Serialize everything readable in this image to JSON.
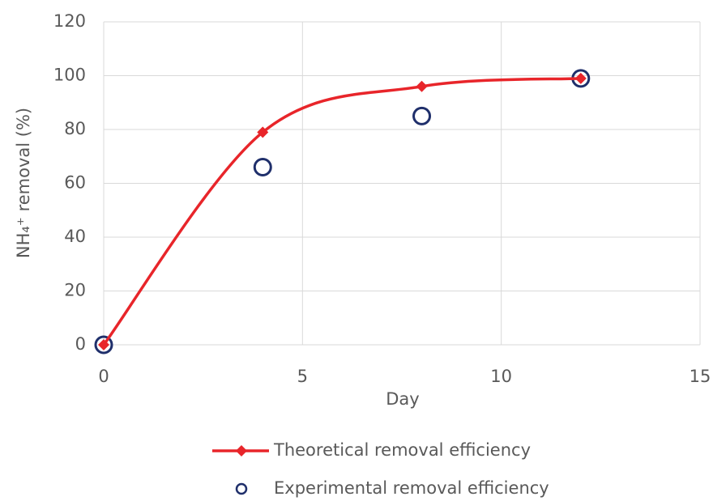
{
  "chart_data": {
    "type": "line",
    "x_label": "Day",
    "y_label": "NH₄⁺ removal (%)",
    "x": [
      0,
      4,
      8,
      12
    ],
    "series": [
      {
        "name": "Theoretical removal efficiency",
        "color": "#e8252a",
        "values": [
          0,
          79,
          96,
          99
        ],
        "marker": "diamond",
        "line": true,
        "smooth": true
      },
      {
        "name": "Experimental removal efficiency",
        "color": "#1f2f6b",
        "values": [
          0,
          66,
          85,
          99
        ],
        "marker": "circle",
        "line": false,
        "smooth": false
      }
    ],
    "xlim": [
      0,
      15
    ],
    "xticks": [
      0,
      5,
      10,
      15
    ],
    "ylim": [
      0,
      120
    ],
    "yticks": [
      0,
      20,
      40,
      60,
      80,
      100,
      120
    ],
    "grid": true,
    "legend": "bottom"
  }
}
